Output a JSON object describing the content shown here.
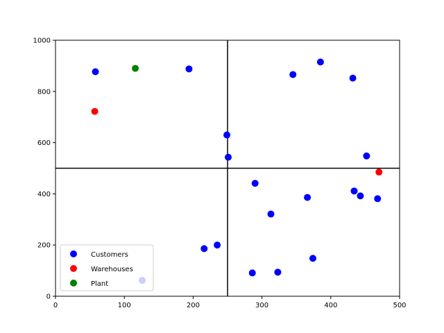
{
  "chart_data": {
    "type": "scatter",
    "title": "",
    "xlabel": "",
    "ylabel": "",
    "xlim": [
      0,
      500
    ],
    "ylim": [
      0,
      1000
    ],
    "x_ticks": [
      0,
      100,
      200,
      300,
      400,
      500
    ],
    "y_ticks": [
      0,
      200,
      400,
      600,
      800,
      1000
    ],
    "grid": false,
    "legend_position": "lower-left",
    "reference_lines": {
      "vertical_x": 250,
      "horizontal_y": 500
    },
    "series": [
      {
        "name": "Customers",
        "color": "#0000ff",
        "points": [
          [
            58,
            877
          ],
          [
            194,
            888
          ],
          [
            345,
            866
          ],
          [
            385,
            915
          ],
          [
            432,
            852
          ],
          [
            249,
            630
          ],
          [
            251,
            543
          ],
          [
            452,
            548
          ],
          [
            290,
            441
          ],
          [
            366,
            386
          ],
          [
            434,
            411
          ],
          [
            443,
            392
          ],
          [
            468,
            381
          ],
          [
            313,
            321
          ],
          [
            216,
            186
          ],
          [
            235,
            200
          ],
          [
            374,
            148
          ],
          [
            286,
            91
          ],
          [
            323,
            94
          ],
          [
            126,
            62
          ]
        ]
      },
      {
        "name": "Warehouses",
        "color": "#ff0000",
        "points": [
          [
            57,
            722
          ],
          [
            470,
            485
          ]
        ]
      },
      {
        "name": "Plant",
        "color": "#008000",
        "points": [
          [
            116,
            890
          ]
        ]
      }
    ]
  }
}
